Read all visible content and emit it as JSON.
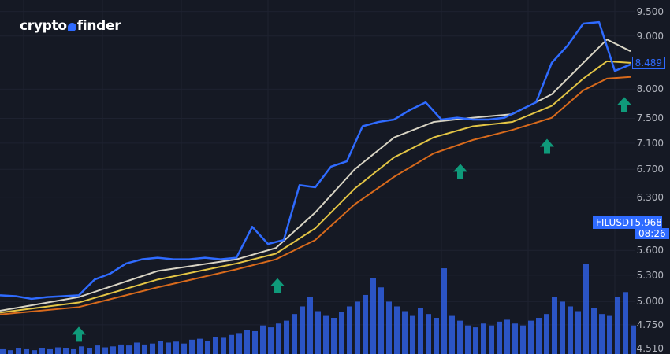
{
  "brand": {
    "text_left": "crypto",
    "text_right": "finder"
  },
  "chart_data": {
    "type": "line",
    "symbol": "FILUSDT",
    "last_price": "5.968",
    "countdown": "08:26",
    "current_price_label": "8.489",
    "y_scale": "log",
    "ylim": [
      4.51,
      9.5
    ],
    "y_ticks": [
      "9.500",
      "9.000",
      "8.000",
      "7.500",
      "7.100",
      "6.700",
      "6.300",
      "5.600",
      "5.300",
      "5.000",
      "4.750",
      "4.510"
    ],
    "grid": true,
    "colors": {
      "background": "#151924",
      "price": "#2f6bff",
      "ma_fast": "#d8d4c4",
      "ma_mid": "#e3c545",
      "ma_slow": "#d86a1c",
      "signal": "#0f9a7a",
      "volume": "#2f5fe0"
    },
    "price": [
      5.07,
      5.06,
      5.03,
      5.05,
      5.06,
      5.07,
      5.25,
      5.32,
      5.44,
      5.49,
      5.51,
      5.49,
      5.49,
      5.51,
      5.49,
      5.51,
      5.9,
      5.68,
      5.73,
      6.47,
      6.44,
      6.74,
      6.82,
      7.37,
      7.44,
      7.48,
      7.64,
      7.77,
      7.48,
      7.51,
      7.48,
      7.48,
      7.51,
      7.64,
      7.77,
      8.48,
      8.81,
      9.25,
      9.28,
      8.33,
      8.45
    ],
    "ma_fast": [
      [
        0,
        4.9
      ],
      [
        5,
        5.05
      ],
      [
        10,
        5.35
      ],
      [
        15,
        5.49
      ],
      [
        17.5,
        5.63
      ],
      [
        20,
        6.09
      ],
      [
        22.5,
        6.7
      ],
      [
        25,
        7.19
      ],
      [
        27.5,
        7.44
      ],
      [
        30,
        7.51
      ],
      [
        32.5,
        7.57
      ],
      [
        35,
        7.91
      ],
      [
        37,
        8.48
      ],
      [
        38.5,
        8.93
      ],
      [
        40,
        8.7
      ]
    ],
    "ma_mid": [
      [
        0,
        4.88
      ],
      [
        5,
        4.99
      ],
      [
        10,
        5.25
      ],
      [
        15,
        5.44
      ],
      [
        17.5,
        5.56
      ],
      [
        20,
        5.88
      ],
      [
        22.5,
        6.42
      ],
      [
        25,
        6.88
      ],
      [
        27.5,
        7.19
      ],
      [
        30,
        7.37
      ],
      [
        32.5,
        7.44
      ],
      [
        35,
        7.71
      ],
      [
        37,
        8.19
      ],
      [
        38.5,
        8.51
      ],
      [
        40,
        8.48
      ]
    ],
    "ma_slow": [
      [
        0,
        4.86
      ],
      [
        5,
        4.94
      ],
      [
        10,
        5.16
      ],
      [
        15,
        5.37
      ],
      [
        17.5,
        5.49
      ],
      [
        20,
        5.73
      ],
      [
        22.5,
        6.2
      ],
      [
        25,
        6.59
      ],
      [
        27.5,
        6.94
      ],
      [
        30,
        7.15
      ],
      [
        32.5,
        7.31
      ],
      [
        35,
        7.51
      ],
      [
        37,
        7.98
      ],
      [
        38.5,
        8.19
      ],
      [
        40,
        8.22
      ]
    ],
    "buy_signals": [
      5,
      17.6,
      29.2,
      34.7,
      39.6
    ],
    "volume": [
      5,
      4,
      6,
      5,
      4,
      6,
      5,
      7,
      6,
      5,
      8,
      6,
      9,
      7,
      8,
      10,
      9,
      12,
      10,
      11,
      14,
      12,
      13,
      11,
      15,
      16,
      14,
      18,
      17,
      20,
      22,
      25,
      24,
      30,
      28,
      32,
      35,
      42,
      50,
      60,
      45,
      40,
      38,
      44,
      50,
      55,
      62,
      80,
      70,
      55,
      50,
      45,
      40,
      48,
      42,
      38,
      90,
      40,
      35,
      30,
      28,
      32,
      30,
      34,
      36,
      32,
      30,
      35,
      38,
      42,
      60,
      55,
      50,
      45,
      95,
      48,
      42,
      40,
      60,
      65,
      30
    ]
  }
}
